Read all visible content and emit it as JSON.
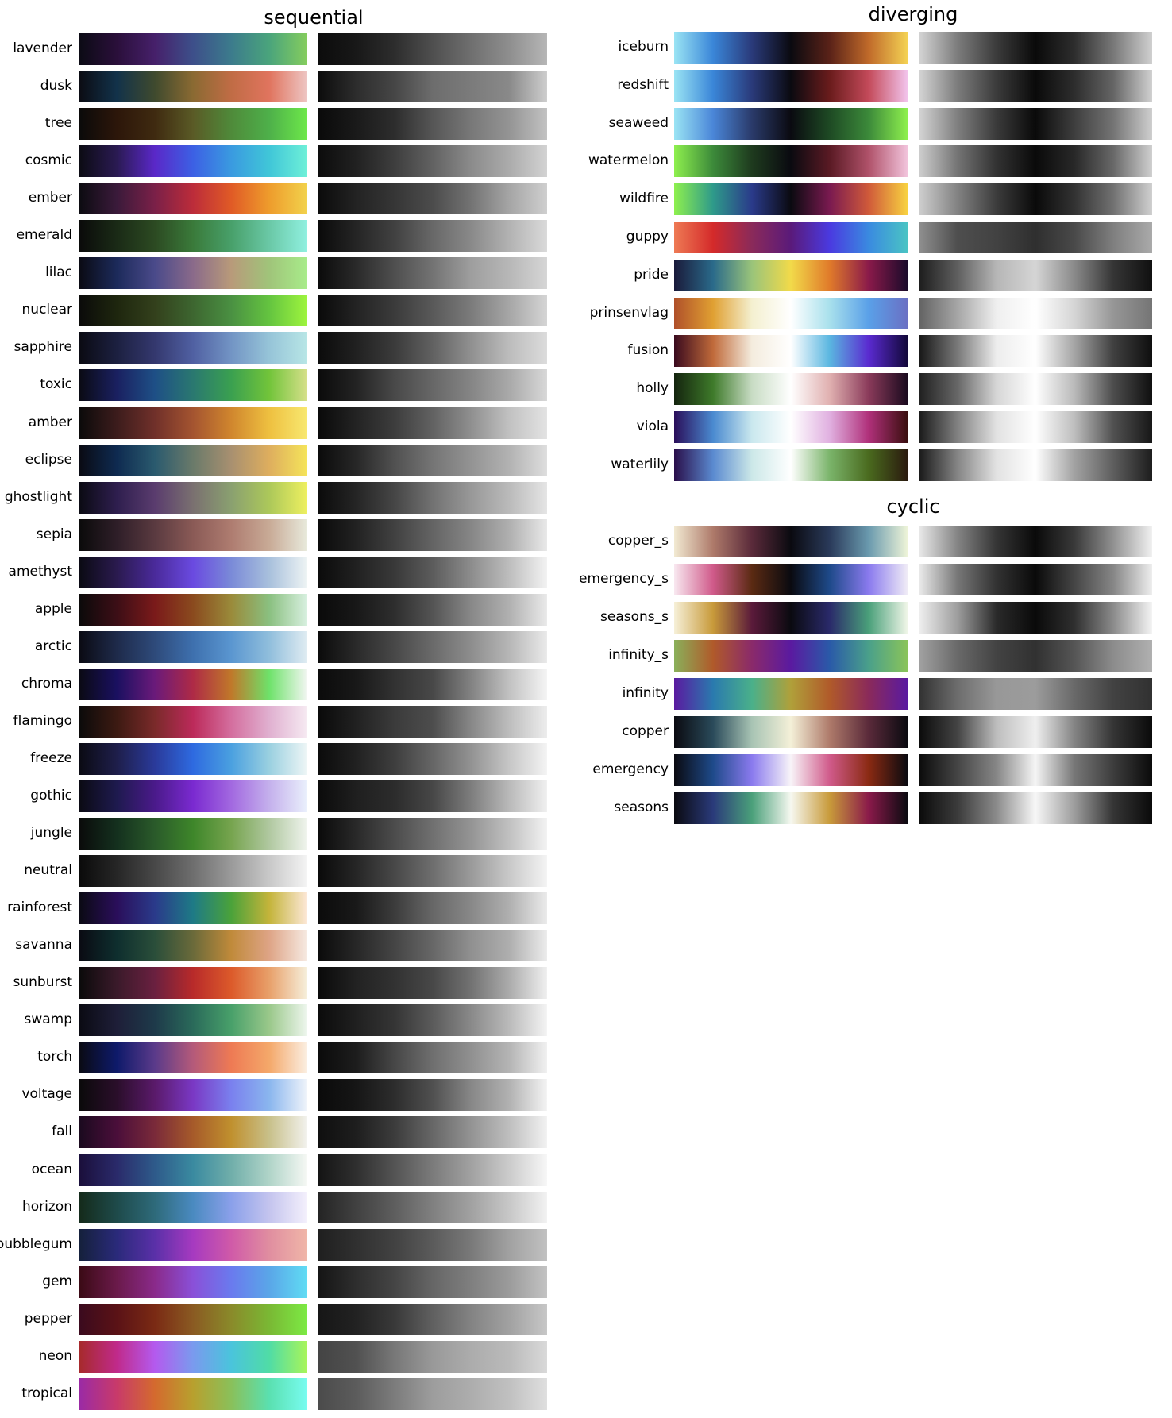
{
  "sections": [
    {
      "title": "sequential",
      "colormaps": [
        {
          "name": "lavender",
          "colors": [
            "#0b0b14",
            "#2a0f3a",
            "#46206a",
            "#3d4f8a",
            "#3c7b8c",
            "#4aa47c",
            "#85cd5e"
          ]
        },
        {
          "name": "dusk",
          "colors": [
            "#0b0b12",
            "#12324a",
            "#3f4a2e",
            "#8a6a32",
            "#c06c45",
            "#e0745e",
            "#eec6c4"
          ]
        },
        {
          "name": "tree",
          "colors": [
            "#0a0a0a",
            "#2c160a",
            "#3f2a10",
            "#5a5a26",
            "#4f8a3a",
            "#4eb04a",
            "#6de84a"
          ]
        },
        {
          "name": "cosmic",
          "colors": [
            "#0b0b12",
            "#2a1a52",
            "#5a28c8",
            "#3c60e4",
            "#3a9ae0",
            "#40c6d8",
            "#6ef0d8"
          ]
        },
        {
          "name": "ember",
          "colors": [
            "#0b0b10",
            "#3a1a3a",
            "#7a2048",
            "#bc2c3a",
            "#e05a26",
            "#ee9c2c",
            "#f2d24c"
          ]
        },
        {
          "name": "emerald",
          "colors": [
            "#0a0a0a",
            "#1a2a16",
            "#2c4a22",
            "#3a7a3a",
            "#48a06a",
            "#6ac8a6",
            "#90f0e0"
          ]
        },
        {
          "name": "lilac",
          "colors": [
            "#0a0a12",
            "#1c2a5a",
            "#4a4a8a",
            "#8a6a8a",
            "#b89a7a",
            "#a0c47a",
            "#a8ec8a"
          ]
        },
        {
          "name": "nuclear",
          "colors": [
            "#0a0a0a",
            "#1e260e",
            "#33401c",
            "#3d6630",
            "#4a9042",
            "#64c440",
            "#9ef53e"
          ]
        },
        {
          "name": "sapphire",
          "colors": [
            "#0a0a12",
            "#1c2040",
            "#34386e",
            "#5060a2",
            "#7294c4",
            "#96c4d8",
            "#b8e6e6"
          ]
        },
        {
          "name": "toxic",
          "colors": [
            "#0a0a12",
            "#1a2060",
            "#1e4f86",
            "#2a7870",
            "#3aa050",
            "#72c43a",
            "#d6e08a"
          ]
        },
        {
          "name": "amber",
          "colors": [
            "#0a0a0a",
            "#3c1c1c",
            "#70302a",
            "#a45430",
            "#d0862e",
            "#eec040",
            "#f8e870"
          ]
        },
        {
          "name": "eclipse",
          "colors": [
            "#0a0a12",
            "#0e2a50",
            "#2a5a6e",
            "#6a7a6a",
            "#a89070",
            "#deae5e",
            "#f5e45a"
          ]
        },
        {
          "name": "ghostlight",
          "colors": [
            "#0a0a12",
            "#2e1e4e",
            "#5a3c6e",
            "#7a7070",
            "#8aa070",
            "#acc85a",
            "#eef060"
          ]
        },
        {
          "name": "sepia",
          "colors": [
            "#0a0a0a",
            "#2e1e28",
            "#5a3a40",
            "#8a5a56",
            "#ae7c70",
            "#c8aa96",
            "#e8eadc"
          ]
        },
        {
          "name": "amethyst",
          "colors": [
            "#0a0a12",
            "#2a1a4e",
            "#4a2a9a",
            "#6a4ae0",
            "#7a8ad8",
            "#a8c0dc",
            "#eef4f4"
          ]
        },
        {
          "name": "apple",
          "colors": [
            "#0a0a0a",
            "#3c0e16",
            "#7a1a1a",
            "#8a4a1e",
            "#9a8a3a",
            "#8ac080",
            "#d8f0e0"
          ]
        },
        {
          "name": "arctic",
          "colors": [
            "#0a0a12",
            "#1e2a4a",
            "#2e4a7a",
            "#3e70ae",
            "#5a96d0",
            "#90bedc",
            "#e0ecf2"
          ]
        },
        {
          "name": "chroma",
          "colors": [
            "#0a0a12",
            "#1a1060",
            "#6a1a7a",
            "#ae2a46",
            "#c0782a",
            "#6ee26a",
            "#f2f6f2"
          ]
        },
        {
          "name": "flamingo",
          "colors": [
            "#0a0a0a",
            "#3c1a12",
            "#7a2a2a",
            "#bc2a5a",
            "#d46e9e",
            "#e0b0d0",
            "#f6eaf2"
          ]
        },
        {
          "name": "freeze",
          "colors": [
            "#0a0a12",
            "#1e1e4a",
            "#2a3a9a",
            "#2e6ae0",
            "#4aa0e0",
            "#9ad0e0",
            "#eef6f6"
          ]
        },
        {
          "name": "gothic",
          "colors": [
            "#0a0a12",
            "#1e1a4e",
            "#4a1a8a",
            "#7a2ad0",
            "#a268e0",
            "#c4b0ec",
            "#eaf0fc"
          ]
        },
        {
          "name": "jungle",
          "colors": [
            "#0a0a0a",
            "#14301e",
            "#2a5a2a",
            "#3e862a",
            "#76a44e",
            "#b0c8a0",
            "#f0f4ee"
          ]
        },
        {
          "name": "neutral",
          "colors": [
            "#0a0a0a",
            "#262626",
            "#484848",
            "#6e6e6e",
            "#9a9a9a",
            "#c8c8c8",
            "#f4f4f4"
          ]
        },
        {
          "name": "rainforest",
          "colors": [
            "#0a0a12",
            "#2a0e5a",
            "#2a3a8a",
            "#1e7a86",
            "#4aa23a",
            "#c4b43a",
            "#fde8d8"
          ]
        },
        {
          "name": "savanna",
          "colors": [
            "#0a0a12",
            "#0e2e2e",
            "#2a4e3a",
            "#6a6a3a",
            "#c08a3a",
            "#dea486",
            "#f6eae2"
          ]
        },
        {
          "name": "sunburst",
          "colors": [
            "#0a0a0a",
            "#3a1a2a",
            "#6a2040",
            "#b82a2a",
            "#dc5a2a",
            "#e8a06a",
            "#f6f0dc"
          ]
        },
        {
          "name": "swamp",
          "colors": [
            "#0a0a12",
            "#1e1e38",
            "#1e3a4a",
            "#2a6a5a",
            "#48a06a",
            "#9ac88a",
            "#eef6ee"
          ]
        },
        {
          "name": "torch",
          "colors": [
            "#0a0a12",
            "#0e1a6a",
            "#5a3a8a",
            "#b45a7a",
            "#ee7a54",
            "#f4a86a",
            "#fbefe2"
          ]
        },
        {
          "name": "voltage",
          "colors": [
            "#0a0a0a",
            "#2a0e2a",
            "#5a1a6a",
            "#7a38c4",
            "#7a80ee",
            "#8ab6ee",
            "#f0f4fa"
          ]
        },
        {
          "name": "fall",
          "colors": [
            "#1a0a1e",
            "#4a0e3a",
            "#7a2a3a",
            "#a65a2a",
            "#c0902e",
            "#c8c08a",
            "#f2f2ee"
          ]
        },
        {
          "name": "ocean",
          "colors": [
            "#1a0e3a",
            "#2a2a6a",
            "#2e5a8a",
            "#3a8aa0",
            "#70aeaa",
            "#b0d4c8",
            "#f6f8f4"
          ]
        },
        {
          "name": "horizon",
          "colors": [
            "#142a1a",
            "#1e4a4a",
            "#2e6a7a",
            "#4a8ac0",
            "#8aa0ea",
            "#c4c4ee",
            "#f4f0fc"
          ]
        },
        {
          "name": "bubblegum",
          "colors": [
            "#14203a",
            "#2a2a7a",
            "#5a30a8",
            "#a63ac0",
            "#d05aa8",
            "#e08ea0",
            "#f0b6a8"
          ]
        },
        {
          "name": "gem",
          "colors": [
            "#3a0a14",
            "#6a1a4a",
            "#8a2a8a",
            "#8a50d8",
            "#6a7aee",
            "#5aa6e8",
            "#60dcf4"
          ]
        },
        {
          "name": "pepper",
          "colors": [
            "#3a0a1e",
            "#5a1216",
            "#7a2a14",
            "#8a5a22",
            "#8a8a2a",
            "#7ab834",
            "#7cea44"
          ]
        },
        {
          "name": "neon",
          "colors": [
            "#a62a2a",
            "#c02a8a",
            "#b45aee",
            "#7a9aee",
            "#4ac4dc",
            "#50dca6",
            "#a8f55a"
          ]
        },
        {
          "name": "tropical",
          "colors": [
            "#9a2aa6",
            "#c83a6a",
            "#d46a2e",
            "#b8a02e",
            "#8ac05a",
            "#5ae0b0",
            "#78fcf0"
          ]
        }
      ]
    },
    {
      "title": "diverging",
      "colormaps": [
        {
          "name": "iceburn",
          "colors": [
            "#9ae4f4",
            "#3a86d8",
            "#2a3a7a",
            "#0a0a10",
            "#5a2218",
            "#c06a2a",
            "#f4d254"
          ]
        },
        {
          "name": "redshift",
          "colors": [
            "#9ae4f4",
            "#3a86d8",
            "#2a3a7a",
            "#0a0a10",
            "#6a1c1c",
            "#c44a5a",
            "#f2c4ec"
          ]
        },
        {
          "name": "seaweed",
          "colors": [
            "#9ae4f4",
            "#4a86d8",
            "#2a3a6a",
            "#0a0a10",
            "#1e4a24",
            "#3c8a3a",
            "#8ef04e"
          ]
        },
        {
          "name": "watermelon",
          "colors": [
            "#8ef04e",
            "#3c8a3a",
            "#1e3a1e",
            "#0a0a10",
            "#5a1a24",
            "#b0526a",
            "#f2c4dc"
          ]
        },
        {
          "name": "wildfire",
          "colors": [
            "#8ef04e",
            "#2e9a8a",
            "#2a3a8a",
            "#0a0a10",
            "#7a1a50",
            "#d05a3a",
            "#f8d240"
          ]
        },
        {
          "name": "guppy",
          "colors": [
            "#ee7a54",
            "#d42a2a",
            "#8a2a5a",
            "#5a1a7a",
            "#4a3ae0",
            "#3a8ae0",
            "#4ac4c4"
          ]
        },
        {
          "name": "pride",
          "colors": [
            "#1a1a3a",
            "#2a6a8a",
            "#9ac47a",
            "#f2da4a",
            "#e07a2a",
            "#8a1a4a",
            "#1a0a2a"
          ]
        },
        {
          "name": "prinsenvlag",
          "colors": [
            "#b0502a",
            "#e0a032",
            "#f4f0d0",
            "#ffffff",
            "#a8e0ec",
            "#5aa0e8",
            "#6a70c4"
          ]
        },
        {
          "name": "fusion",
          "colors": [
            "#3a0a1e",
            "#c06a3a",
            "#f4ecde",
            "#ffffff",
            "#5ab6e0",
            "#5a2ad0",
            "#12083a"
          ]
        },
        {
          "name": "holly",
          "colors": [
            "#14240e",
            "#3e7a2a",
            "#c8dcc4",
            "#ffffff",
            "#e0b0b0",
            "#8a3a5a",
            "#1a0a1e"
          ]
        },
        {
          "name": "viola",
          "colors": [
            "#2a0e5a",
            "#4a8ad0",
            "#cae8ee",
            "#ffffff",
            "#e0b0e0",
            "#b0307a",
            "#3a0e0e"
          ]
        },
        {
          "name": "waterlily",
          "colors": [
            "#2a0e4a",
            "#5a8ad0",
            "#cce8e8",
            "#ffffff",
            "#7ab46a",
            "#4a6a1e",
            "#2a1a0e"
          ]
        }
      ]
    },
    {
      "title": "cyclic",
      "colormaps": [
        {
          "name": "copper_s",
          "colors": [
            "#f2ead2",
            "#ae7a6a",
            "#5a2a3a",
            "#0a0a10",
            "#2a3a5a",
            "#6a9aae",
            "#eef4d8"
          ]
        },
        {
          "name": "emergency_s",
          "colors": [
            "#f8e8f0",
            "#d05a8a",
            "#5a2a12",
            "#0a0a10",
            "#1e4a8a",
            "#8a7aee",
            "#f0ecf6"
          ]
        },
        {
          "name": "seasons_s",
          "colors": [
            "#f6f0d8",
            "#c89a3a",
            "#5a1a3a",
            "#0a0a10",
            "#2a2a6a",
            "#4aa07a",
            "#f0f6e8"
          ]
        },
        {
          "name": "infinity_s",
          "colors": [
            "#8ab05a",
            "#b05a2a",
            "#8a2a6a",
            "#5a1aa0",
            "#2a5aa8",
            "#4aa08a",
            "#8ac45a"
          ]
        },
        {
          "name": "infinity",
          "colors": [
            "#5a1aa0",
            "#2a7aae",
            "#4ab08a",
            "#b0a03a",
            "#b05a2a",
            "#8a2a5a",
            "#5a1aa0"
          ]
        },
        {
          "name": "copper",
          "colors": [
            "#0a0a10",
            "#2a4a5a",
            "#a8c4b4",
            "#f4f0d8",
            "#ae7a6a",
            "#5a2a3a",
            "#0a0a10"
          ]
        },
        {
          "name": "emergency",
          "colors": [
            "#0a0a10",
            "#1e4a8a",
            "#8a7aee",
            "#f8f4f8",
            "#d05a8a",
            "#8a2a12",
            "#0a0a10"
          ]
        },
        {
          "name": "seasons",
          "colors": [
            "#0a0a10",
            "#2a3a7a",
            "#4aa07a",
            "#f6f8f0",
            "#c89a3a",
            "#8a1a4a",
            "#0a0a10"
          ]
        }
      ]
    }
  ]
}
